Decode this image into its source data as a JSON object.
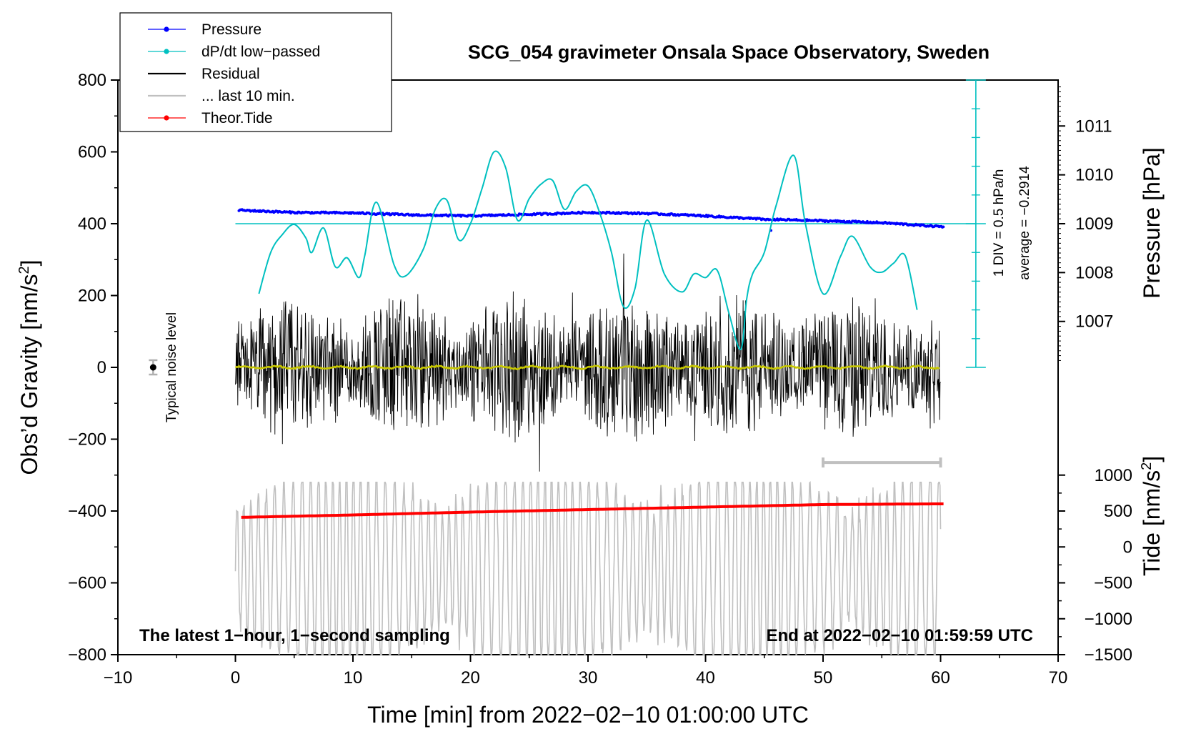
{
  "chart_data": {
    "type": "line",
    "title": "SCG_054 gravimeter Onsala Space Observatory, Sweden",
    "xlabel": "Time [min] from 2022−02−10 01:00:00 UTC",
    "ylabel_main": "Obs’d Gravity [nm/s",
    "ylabel_main_sup": "2",
    "ylabel_main_close": "]",
    "ylabel_pressure": "Pressure [hPa]",
    "ylabel_tide": "Tide [nm/s",
    "ylabel_tide_sup": "2",
    "ylabel_tide_close": "]",
    "xlim": [
      -10,
      70
    ],
    "ylim": [
      -800,
      800
    ],
    "x_ticks": [
      -10,
      0,
      10,
      20,
      30,
      40,
      50,
      60,
      70
    ],
    "x_tick_labels": [
      "−10",
      "0",
      "10",
      "20",
      "30",
      "40",
      "50",
      "60",
      "70"
    ],
    "y_ticks": [
      800,
      600,
      400,
      200,
      0,
      -200,
      -400,
      -600,
      -800
    ],
    "y_tick_labels": [
      "800",
      "600",
      "400",
      "200",
      "0",
      "−200",
      "−400",
      "−600",
      "−800"
    ],
    "pressure_ticks": [
      1011,
      1010,
      1009,
      1008,
      1007
    ],
    "pressure_tick_labels": [
      "1011",
      "1010",
      "1009",
      "1008",
      "1007"
    ],
    "pressure_axis": {
      "hPa_at_400": 1009.0,
      "hPa_per_200": 1.47
    },
    "tide_ticks": [
      1000,
      500,
      0,
      -500,
      -1000,
      -1500
    ],
    "tide_tick_labels": [
      "1000",
      "500",
      "0",
      "−500",
      "−1000",
      "−1500"
    ],
    "tide_axis": {
      "nm_s2_at_gravity_0": 2500,
      "nm_s2_per_200_gravity": 1000
    },
    "legend": [
      {
        "label": "Pressure",
        "color": "#0000ff",
        "style": "line-dot"
      },
      {
        "label": "dP/dt low−passed",
        "color": "#00c0c0",
        "style": "line-dot"
      },
      {
        "label": "Residual",
        "color": "#000000",
        "style": "line"
      },
      {
        "label": "... last 10 min.",
        "color": "#c0c0c0",
        "style": "line"
      },
      {
        "label": "Theor.Tide",
        "color": "#ff0000",
        "style": "line-dot"
      }
    ],
    "series": [
      {
        "name": "Pressure",
        "color": "#0000ff",
        "x": [
          0,
          5,
          10,
          15,
          20,
          25,
          30,
          35,
          40,
          45,
          50,
          55,
          60
        ],
        "hPa": [
          1009.28,
          1009.23,
          1009.22,
          1009.18,
          1009.16,
          1009.19,
          1009.23,
          1009.21,
          1009.16,
          1009.09,
          1009.06,
          1009.02,
          1008.94
        ]
      },
      {
        "name": "dP/dt low−passed",
        "color": "#00c0c0",
        "x": [
          2,
          3,
          4,
          5,
          6,
          6.5,
          7.5,
          8.5,
          9.5,
          10.5,
          11,
          12,
          13.5,
          14.5,
          16,
          17,
          18,
          19,
          20,
          21,
          22,
          23,
          24,
          25,
          26,
          27,
          28,
          29,
          30,
          31,
          32,
          33,
          34,
          35,
          36.5,
          38,
          39,
          40,
          41,
          42,
          43,
          43.5,
          44,
          45,
          46,
          47.5,
          48.5,
          50,
          51.5,
          52.5,
          54,
          55,
          56,
          57,
          58
        ],
        "y": [
          205,
          320,
          370,
          398,
          360,
          320,
          388,
          280,
          305,
          250,
          310,
          460,
          285,
          255,
          330,
          440,
          465,
          355,
          400,
          500,
          600,
          555,
          410,
          470,
          510,
          520,
          440,
          490,
          505,
          430,
          320,
          170,
          220,
          410,
          260,
          210,
          260,
          250,
          270,
          150,
          50,
          190,
          260,
          320,
          450,
          590,
          400,
          205,
          310,
          365,
          280,
          265,
          290,
          310,
          160
        ]
      },
      {
        "name": "Residual",
        "color": "#000000",
        "x": [
          0,
          60
        ],
        "envelope": [
          -290,
          330
        ]
      },
      {
        "name": "... last 10 min.",
        "color": "#c0c0c0",
        "x": [
          0,
          60
        ],
        "envelope": [
          -800,
          -320
        ]
      },
      {
        "name": "Theor.Tide",
        "color": "#ff0000",
        "x": [
          0,
          10,
          20,
          30,
          40,
          50,
          60
        ],
        "y_gravity_units": [
          -418,
          -411,
          -403,
          -396,
          -389,
          -382,
          -380
        ]
      }
    ],
    "average_line": {
      "y": 400,
      "color": "#00c0c0"
    },
    "dpdt_scale": {
      "label": "1 DIV = 0.5 hPa/h",
      "average_label": "average = −0.2914",
      "x": 63,
      "y_range": [
        0,
        800
      ]
    },
    "noise_marker": {
      "x": -7,
      "y": 0,
      "err": 20,
      "label": "Typical noise level"
    },
    "last10_bar": {
      "x": [
        50,
        60
      ],
      "y": -265
    },
    "note_left": "The latest 1−hour, 1−second sampling",
    "note_right": "End at 2022−02−10 01:59:59 UTC"
  }
}
